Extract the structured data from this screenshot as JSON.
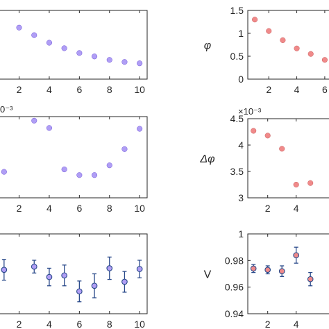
{
  "chart_data": [
    {
      "type": "scatter",
      "panel": "left-top",
      "xlim": [
        0.5,
        10.5
      ],
      "ylim": [
        0,
        1
      ],
      "xticks": [
        2,
        4,
        6,
        8,
        10
      ],
      "xtick_labels": [
        "2",
        "4",
        "6",
        "8",
        "10"
      ],
      "yticks": [],
      "ytick_labels": [],
      "ylabel": "",
      "exponent": "",
      "color": "#b09ef5",
      "edge": "#6a4fd8",
      "x": [
        2,
        3,
        4,
        5,
        6,
        7,
        8,
        9,
        10
      ],
      "y": [
        0.75,
        0.64,
        0.53,
        0.45,
        0.38,
        0.33,
        0.28,
        0.25,
        0.23
      ]
    },
    {
      "type": "scatter",
      "panel": "right-top",
      "xlim": [
        0.5,
        6.6
      ],
      "ylim": [
        0,
        1.5
      ],
      "xticks": [
        2,
        4,
        6
      ],
      "xtick_labels": [
        "2",
        "4",
        "6"
      ],
      "yticks": [
        0,
        0.5,
        1,
        1.5
      ],
      "ytick_labels": [
        "0",
        "0.5",
        "1",
        "1.5"
      ],
      "ylabel": "φ",
      "exponent": "",
      "color": "#f08a8a",
      "edge": "#c85a5a",
      "x": [
        1,
        2,
        3,
        4,
        5,
        6
      ],
      "y": [
        1.3,
        1.05,
        0.85,
        0.67,
        0.55,
        0.42
      ]
    },
    {
      "type": "scatter",
      "panel": "left-middle",
      "xlim": [
        0.5,
        10.5
      ],
      "ylim": [
        0,
        1
      ],
      "xticks": [
        2,
        4,
        6,
        8,
        10
      ],
      "xtick_labels": [
        "2",
        "4",
        "6",
        "8",
        "10"
      ],
      "yticks": [],
      "ytick_labels": [],
      "ylabel": "",
      "exponent": "0⁻³",
      "color": "#b09ef5",
      "edge": "#6a4fd8",
      "x": [
        1,
        3,
        4,
        5,
        6,
        7,
        8,
        9,
        10
      ],
      "y": [
        0.32,
        0.95,
        0.86,
        0.35,
        0.28,
        0.28,
        0.4,
        0.6,
        0.85
      ]
    },
    {
      "type": "scatter",
      "panel": "right-middle",
      "xlim": [
        0.6,
        6.6
      ],
      "ylim": [
        3,
        4.5
      ],
      "xticks": [
        2,
        4
      ],
      "xtick_labels": [
        "2",
        "4"
      ],
      "yticks": [
        3,
        3.5,
        4,
        4.5
      ],
      "ytick_labels": [
        "3",
        "3.5",
        "4",
        "4.5"
      ],
      "ylabel": "Δφ",
      "exponent": "×10⁻³",
      "color": "#f08a8a",
      "edge": "#c85a5a",
      "x": [
        1,
        2,
        3,
        4,
        5
      ],
      "y": [
        4.27,
        4.18,
        3.93,
        3.25,
        3.28
      ]
    },
    {
      "type": "scatter",
      "panel": "left-bottom",
      "xlim": [
        0.5,
        10.5
      ],
      "ylim": [
        0,
        1
      ],
      "xticks": [
        2,
        4,
        6,
        8,
        10
      ],
      "xtick_labels": [
        "2",
        "4",
        "6",
        "8",
        "10"
      ],
      "yticks": [],
      "ytick_labels": [],
      "ylabel": "",
      "exponent": "",
      "color": "#b09ef5",
      "edge": "#6a4fd8",
      "errorbar": "#2a4a8a",
      "x": [
        1,
        3,
        4,
        5,
        6,
        7,
        8,
        9,
        10
      ],
      "y": [
        0.55,
        0.59,
        0.46,
        0.48,
        0.28,
        0.35,
        0.57,
        0.4,
        0.56
      ],
      "err": [
        0.13,
        0.08,
        0.11,
        0.13,
        0.13,
        0.15,
        0.14,
        0.13,
        0.11
      ]
    },
    {
      "type": "scatter",
      "panel": "right-bottom",
      "xlim": [
        0.6,
        6.6
      ],
      "ylim": [
        0.94,
        1
      ],
      "xticks": [
        2,
        4
      ],
      "xtick_labels": [
        "2",
        "4"
      ],
      "yticks": [
        0.94,
        0.96,
        0.98,
        1
      ],
      "ytick_labels": [
        "0.94",
        "0.96",
        "0.98",
        "1"
      ],
      "ylabel": "V",
      "exponent": "",
      "color": "#f08a8a",
      "edge": "#c85a5a",
      "errorbar": "#2a4a8a",
      "x": [
        1,
        2,
        3,
        4,
        5
      ],
      "y": [
        0.974,
        0.973,
        0.972,
        0.984,
        0.966
      ],
      "err": [
        0.003,
        0.003,
        0.004,
        0.006,
        0.005
      ]
    }
  ]
}
